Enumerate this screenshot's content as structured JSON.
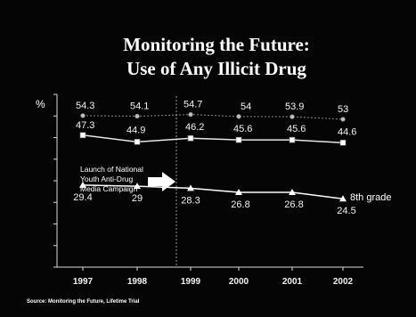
{
  "title_line1": "Monitoring the Future:",
  "title_line2": "Use of Any Illicit Drug",
  "source": "Source: Monitoring the Future, Lifetime Trial",
  "annotation": {
    "lines": [
      "Launch of National",
      "Youth Anti-Drug",
      "Media Campaign"
    ]
  },
  "colors": {
    "background": "#050505",
    "text": "#f2f2f2",
    "series_12th": "#8c8c8c",
    "series_10th": "#e6e6e6",
    "series_8th": "#ffffff"
  },
  "chart_data": {
    "type": "line",
    "title": "Monitoring the Future: Use of Any Illicit Drug",
    "ylabel": "%",
    "xlabel": "",
    "x": [
      "1997",
      "1998",
      "1999",
      "2000",
      "2001",
      "2002"
    ],
    "ylim": [
      0,
      60
    ],
    "grid": false,
    "campaign_marker_between": [
      "1998",
      "1999"
    ],
    "series": [
      {
        "name": "",
        "marker": "circle",
        "values": [
          54.3,
          54.1,
          54.7,
          54,
          53.9,
          53
        ],
        "labels": [
          "54.3",
          "54.1",
          "54.7",
          "54",
          "53.9",
          "53"
        ]
      },
      {
        "name": "",
        "marker": "square",
        "values": [
          47.3,
          44.9,
          46.2,
          45.6,
          45.6,
          44.6
        ],
        "labels": [
          "47.3",
          "44.9",
          "46.2",
          "45.6",
          "45.6",
          "44.6"
        ]
      },
      {
        "name": "8th grade",
        "marker": "triangle",
        "values": [
          29.4,
          29,
          28.3,
          26.8,
          26.8,
          24.5
        ],
        "labels": [
          "29.4",
          "29",
          "28.3",
          "26.8",
          "26.8",
          "24.5"
        ]
      }
    ]
  }
}
